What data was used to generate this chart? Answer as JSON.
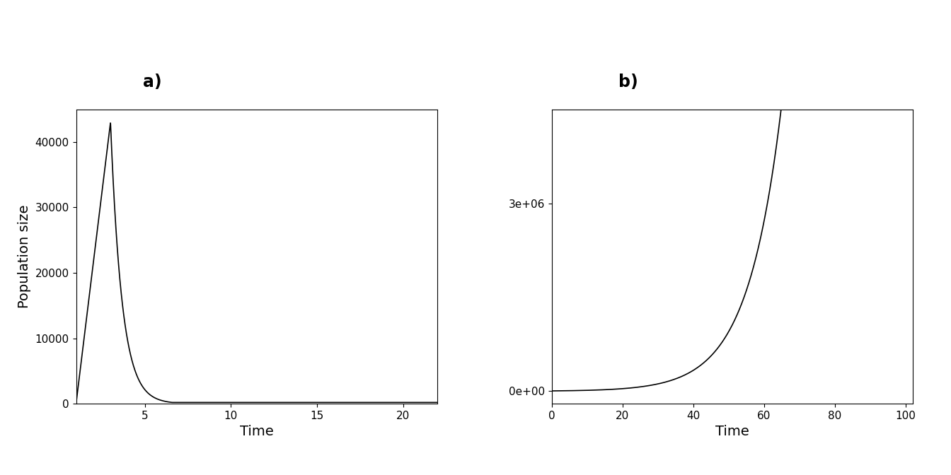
{
  "panel_a": {
    "label": "a)",
    "xlabel": "Time",
    "ylabel": "Population size",
    "xlim": [
      1,
      22
    ],
    "ylim": [
      0,
      45000
    ],
    "xticks": [
      5,
      10,
      15,
      20
    ],
    "yticks": [
      0,
      10000,
      20000,
      30000,
      40000
    ],
    "ytick_labels": [
      "0",
      "10000",
      "20000",
      "30000",
      "40000"
    ],
    "peak_t": 3.0,
    "peak_val": 43000,
    "start_t": 1.0,
    "start_val": 10,
    "decay_rate": 1.5,
    "floor_val": 200
  },
  "panel_b": {
    "label": "b)",
    "xlabel": "Time",
    "xlim": [
      0,
      102
    ],
    "ylim": [
      -200000,
      4500000
    ],
    "xticks": [
      0,
      20,
      40,
      60,
      80,
      100
    ],
    "yticks": [
      0,
      3000000
    ],
    "ytick_labels": [
      "0e+00",
      "3e+06"
    ],
    "growth_rate": 0.105,
    "initial_val": 5000
  },
  "line_color": "#000000",
  "line_width": 1.2,
  "bg_color": "#ffffff",
  "label_fontsize": 14,
  "tick_fontsize": 11,
  "panel_label_fontsize": 17,
  "panel_label_fontweight": "bold"
}
